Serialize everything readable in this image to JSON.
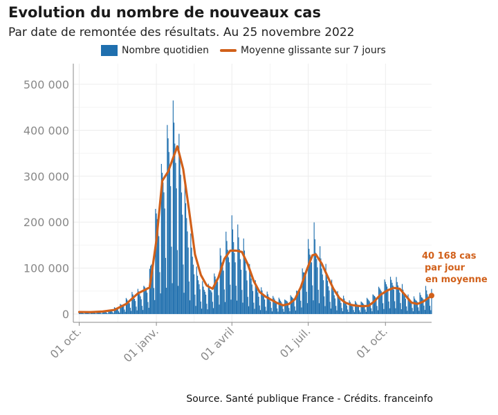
{
  "header": {
    "title": "Evolution du nombre de nouveaux cas",
    "subtitle": "Par date de remontée des résultats. Au 25 novembre 2022"
  },
  "legend": {
    "bars_label": "Nombre quotidien",
    "line_label": "Moyenne glissante sur 7 jours"
  },
  "annotation": {
    "line1": "40 168 cas",
    "line2": "par jour",
    "line3": "en moyenne"
  },
  "footer": {
    "source": "Source. Santé publique France - Crédits. franceinfo"
  },
  "colors": {
    "bars": "#1f6fae",
    "line": "#d1601a",
    "grid": "#ececec",
    "axis": "#888888",
    "tick_text": "#888888"
  },
  "chart_data": {
    "type": "bar",
    "title": "Evolution du nombre de nouveaux cas",
    "subtitle": "Par date de remontée des résultats. Au 25 novembre 2022",
    "x_range": [
      "2021-09-24",
      "2022-11-25"
    ],
    "ylim": [
      -18000,
      545000
    ],
    "y_ticks": [
      0,
      100000,
      200000,
      300000,
      400000,
      500000
    ],
    "y_tick_labels": [
      "0",
      "100 000",
      "200 000",
      "300 000",
      "400 000",
      "500 000"
    ],
    "x_ticks": [
      "2021-10-01",
      "2022-01-01",
      "2022-04-01",
      "2022-07-01",
      "2022-10-01"
    ],
    "x_tick_labels": [
      "01 oct.",
      "01 janv.",
      "01 avril",
      "01 juil.",
      "01 oct."
    ],
    "grid": true,
    "legend_position": "top",
    "series": [
      {
        "name": "Moyenne glissante sur 7 jours",
        "kind": "line",
        "points": [
          [
            "2021-10-01",
            4500
          ],
          [
            "2021-10-15",
            4200
          ],
          [
            "2021-10-29",
            5500
          ],
          [
            "2021-11-12",
            9000
          ],
          [
            "2021-11-26",
            22000
          ],
          [
            "2021-12-10",
            45000
          ],
          [
            "2021-12-24",
            58000
          ],
          [
            "2022-01-01",
            160000
          ],
          [
            "2022-01-08",
            290000
          ],
          [
            "2022-01-15",
            310000
          ],
          [
            "2022-01-22",
            345000
          ],
          [
            "2022-01-26",
            365000
          ],
          [
            "2022-02-02",
            315000
          ],
          [
            "2022-02-09",
            225000
          ],
          [
            "2022-02-16",
            130000
          ],
          [
            "2022-02-23",
            85000
          ],
          [
            "2022-03-02",
            62000
          ],
          [
            "2022-03-09",
            55000
          ],
          [
            "2022-03-16",
            80000
          ],
          [
            "2022-03-23",
            120000
          ],
          [
            "2022-03-30",
            138000
          ],
          [
            "2022-04-06",
            138000
          ],
          [
            "2022-04-13",
            135000
          ],
          [
            "2022-04-20",
            108000
          ],
          [
            "2022-04-27",
            72000
          ],
          [
            "2022-05-04",
            48000
          ],
          [
            "2022-05-11",
            38000
          ],
          [
            "2022-05-25",
            24000
          ],
          [
            "2022-06-01",
            19000
          ],
          [
            "2022-06-08",
            22000
          ],
          [
            "2022-06-15",
            32000
          ],
          [
            "2022-06-22",
            58000
          ],
          [
            "2022-06-29",
            95000
          ],
          [
            "2022-07-06",
            128000
          ],
          [
            "2022-07-10",
            130000
          ],
          [
            "2022-07-17",
            110000
          ],
          [
            "2022-07-24",
            82000
          ],
          [
            "2022-07-31",
            55000
          ],
          [
            "2022-08-07",
            35000
          ],
          [
            "2022-08-14",
            25000
          ],
          [
            "2022-08-21",
            20000
          ],
          [
            "2022-08-28",
            18000
          ],
          [
            "2022-09-04",
            17000
          ],
          [
            "2022-09-11",
            18000
          ],
          [
            "2022-09-18",
            28000
          ],
          [
            "2022-09-25",
            42000
          ],
          [
            "2022-10-04",
            52000
          ],
          [
            "2022-10-11",
            57000
          ],
          [
            "2022-10-18",
            55000
          ],
          [
            "2022-10-25",
            40000
          ],
          [
            "2022-11-01",
            25000
          ],
          [
            "2022-11-08",
            22000
          ],
          [
            "2022-11-15",
            27000
          ],
          [
            "2022-11-22",
            36000
          ],
          [
            "2022-11-25",
            40168
          ]
        ]
      },
      {
        "name": "Nombre quotidien",
        "kind": "bar",
        "note": "daily counts (weekly pattern, ~7-day cycle) estimated from the chart",
        "envelope_weekly_max": [
          [
            "2021-10-01",
            5000
          ],
          [
            "2021-11-05",
            8000
          ],
          [
            "2021-11-19",
            22000
          ],
          [
            "2021-12-03",
            48000
          ],
          [
            "2021-12-17",
            62000
          ],
          [
            "2021-12-24",
            100000
          ],
          [
            "2021-12-31",
            235000
          ],
          [
            "2022-01-07",
            340000
          ],
          [
            "2022-01-14",
            435000
          ],
          [
            "2022-01-21",
            500000
          ],
          [
            "2022-01-28",
            430000
          ],
          [
            "2022-02-04",
            310000
          ],
          [
            "2022-02-11",
            190000
          ],
          [
            "2022-02-18",
            110000
          ],
          [
            "2022-02-25",
            75000
          ],
          [
            "2022-03-04",
            68000
          ],
          [
            "2022-03-11",
            90000
          ],
          [
            "2022-03-18",
            145000
          ],
          [
            "2022-03-25",
            180000
          ],
          [
            "2022-04-01",
            215000
          ],
          [
            "2022-04-08",
            195000
          ],
          [
            "2022-04-15",
            165000
          ],
          [
            "2022-04-22",
            110000
          ],
          [
            "2022-04-29",
            75000
          ],
          [
            "2022-05-06",
            60000
          ],
          [
            "2022-05-20",
            42000
          ],
          [
            "2022-06-03",
            35000
          ],
          [
            "2022-06-17",
            55000
          ],
          [
            "2022-06-24",
            105000
          ],
          [
            "2022-07-01",
            170000
          ],
          [
            "2022-07-08",
            205000
          ],
          [
            "2022-07-15",
            150000
          ],
          [
            "2022-07-22",
            110000
          ],
          [
            "2022-07-29",
            75000
          ],
          [
            "2022-08-05",
            50000
          ],
          [
            "2022-08-19",
            30000
          ],
          [
            "2022-09-02",
            28000
          ],
          [
            "2022-09-16",
            45000
          ],
          [
            "2022-09-30",
            82000
          ],
          [
            "2022-10-07",
            90000
          ],
          [
            "2022-10-14",
            88000
          ],
          [
            "2022-10-21",
            70000
          ],
          [
            "2022-10-28",
            45000
          ],
          [
            "2022-11-04",
            40000
          ],
          [
            "2022-11-11",
            48000
          ],
          [
            "2022-11-18",
            62000
          ],
          [
            "2022-11-25",
            55000
          ]
        ]
      }
    ]
  }
}
